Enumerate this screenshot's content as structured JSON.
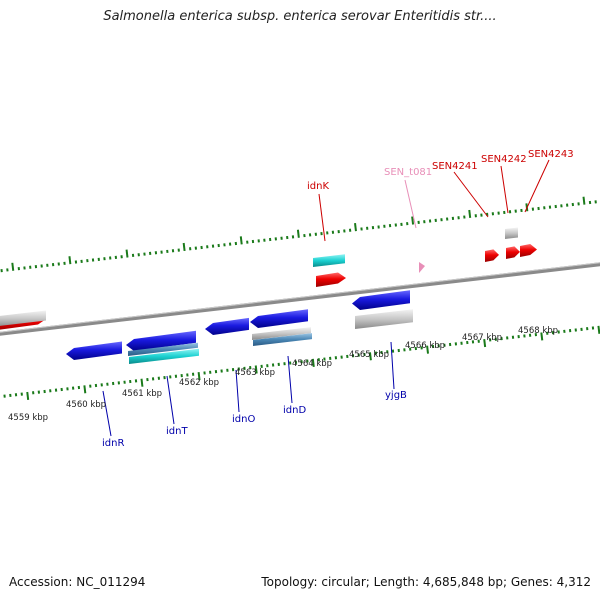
{
  "title": "Salmonella enterica subsp. enterica serovar Enteritidis str....",
  "footer": {
    "accession": "Accession: NC_011294",
    "topology": "Topology: circular; Length: 4,685,848 bp; Genes: 4,312"
  },
  "colors": {
    "backbone": "#8a8a8a",
    "tick": "#1a7a1a",
    "forward_label": "#cc0000",
    "reverse_label": "#0000aa",
    "trna_label": "#e88fb8"
  },
  "scale_labels": [
    {
      "label": "4559 kbp",
      "kbp": 4559
    },
    {
      "label": "4560 kbp",
      "kbp": 4560
    },
    {
      "label": "4561 kbp",
      "kbp": 4561
    },
    {
      "label": "4562 kbp",
      "kbp": 4562
    },
    {
      "label": "4563 kbp",
      "kbp": 4563
    },
    {
      "label": "4564 kbp",
      "kbp": 4564
    },
    {
      "label": "4565 kbp",
      "kbp": 4565
    },
    {
      "label": "4566 kbp",
      "kbp": 4566
    },
    {
      "label": "4567 kbp",
      "kbp": 4567
    },
    {
      "label": "4568 kbp",
      "kbp": 4568
    }
  ],
  "gene_labels": [
    {
      "name": "idnK",
      "strand": "forward"
    },
    {
      "name": "SEN_t081",
      "strand": "trna"
    },
    {
      "name": "SEN4241",
      "strand": "forward"
    },
    {
      "name": "SEN4242",
      "strand": "forward"
    },
    {
      "name": "SEN4243",
      "strand": "forward"
    },
    {
      "name": "idnR",
      "strand": "reverse"
    },
    {
      "name": "idnT",
      "strand": "reverse"
    },
    {
      "name": "idnO",
      "strand": "reverse"
    },
    {
      "name": "idnD",
      "strand": "reverse"
    },
    {
      "name": "yjgB",
      "strand": "reverse"
    }
  ]
}
